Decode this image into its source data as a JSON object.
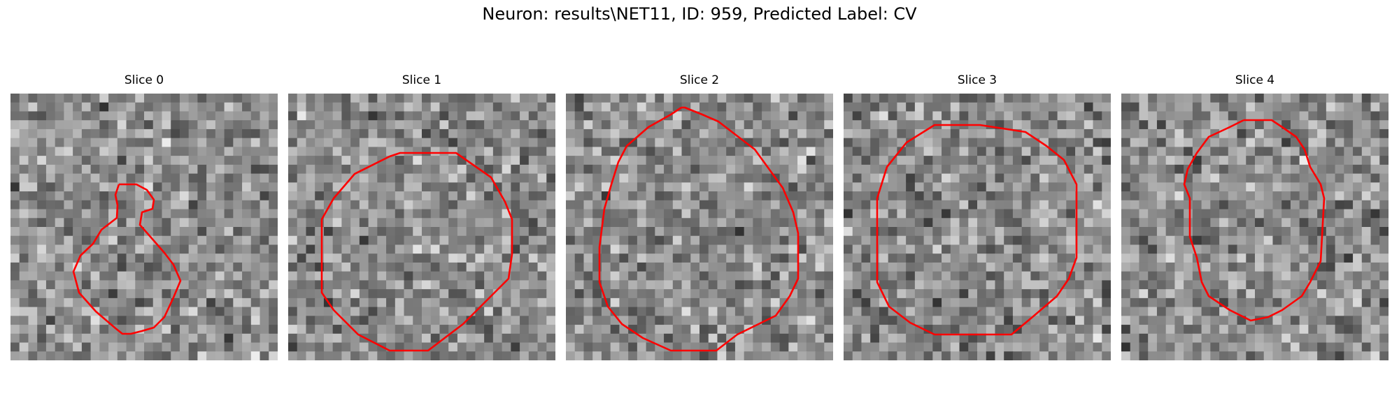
{
  "figure": {
    "title": "Neuron: results\\NET11, ID: 959, Predicted Label: CV"
  },
  "colors": {
    "contour": "#ff0000"
  },
  "panels": [
    {
      "title": "Slice 0",
      "seed": 11
    },
    {
      "title": "Slice 1",
      "seed": 23
    },
    {
      "title": "Slice 2",
      "seed": 37
    },
    {
      "title": "Slice 3",
      "seed": 53
    },
    {
      "title": "Slice 4",
      "seed": 71
    }
  ]
}
